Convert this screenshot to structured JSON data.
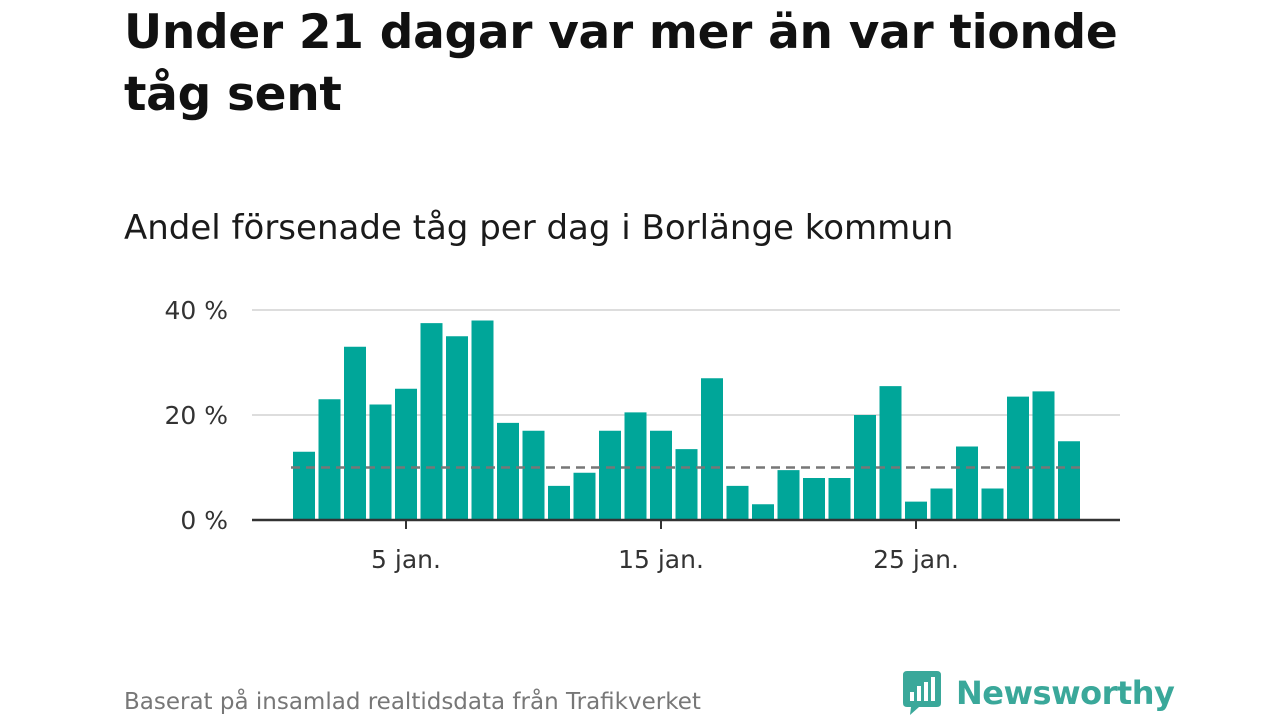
{
  "title": "Under 21 dagar var mer än var tionde tåg sent",
  "subtitle": "Andel försenade tåg per dag i Borlänge kommun",
  "source": "Baserat på insamlad realtidsdata från Trafikverket",
  "brand": {
    "name": "Newsworthy",
    "color": "#3aa89a",
    "icon": "newsworthy-chart-icon"
  },
  "colors": {
    "bar": "#00a699",
    "reference_line": "#777777",
    "grid": "#dddddd",
    "axis": "#333333"
  },
  "chart_data": {
    "type": "bar",
    "title": "Andel försenade tåg per dag i Borlänge kommun",
    "xlabel": "",
    "ylabel": "",
    "x": [
      "1 jan.",
      "2 jan.",
      "3 jan.",
      "4 jan.",
      "5 jan.",
      "6 jan.",
      "7 jan.",
      "8 jan.",
      "9 jan.",
      "10 jan.",
      "11 jan.",
      "12 jan.",
      "13 jan.",
      "14 jan.",
      "15 jan.",
      "16 jan.",
      "17 jan.",
      "18 jan.",
      "19 jan.",
      "20 jan.",
      "21 jan.",
      "22 jan.",
      "23 jan.",
      "24 jan.",
      "25 jan.",
      "26 jan.",
      "27 jan.",
      "28 jan.",
      "29 jan.",
      "30 jan.",
      "31 jan."
    ],
    "values": [
      13,
      23,
      33,
      22,
      25,
      37.5,
      35,
      38,
      18.5,
      17,
      6.5,
      9,
      17,
      20.5,
      17,
      13.5,
      27,
      6.5,
      3,
      9.5,
      8,
      8,
      20,
      25.5,
      3.5,
      6,
      14,
      6,
      23.5,
      24.5,
      15
    ],
    "reference_line": 10,
    "xticks": [
      {
        "label": "5 jan.",
        "index": 4
      },
      {
        "label": "15 jan.",
        "index": 14
      },
      {
        "label": "25 jan.",
        "index": 24
      }
    ],
    "yticks": [
      {
        "label": "0 %",
        "value": 0
      },
      {
        "label": "20 %",
        "value": 20
      },
      {
        "label": "40 %",
        "value": 40
      }
    ],
    "ylim": [
      0,
      40
    ],
    "grid": true,
    "legend": "none"
  }
}
